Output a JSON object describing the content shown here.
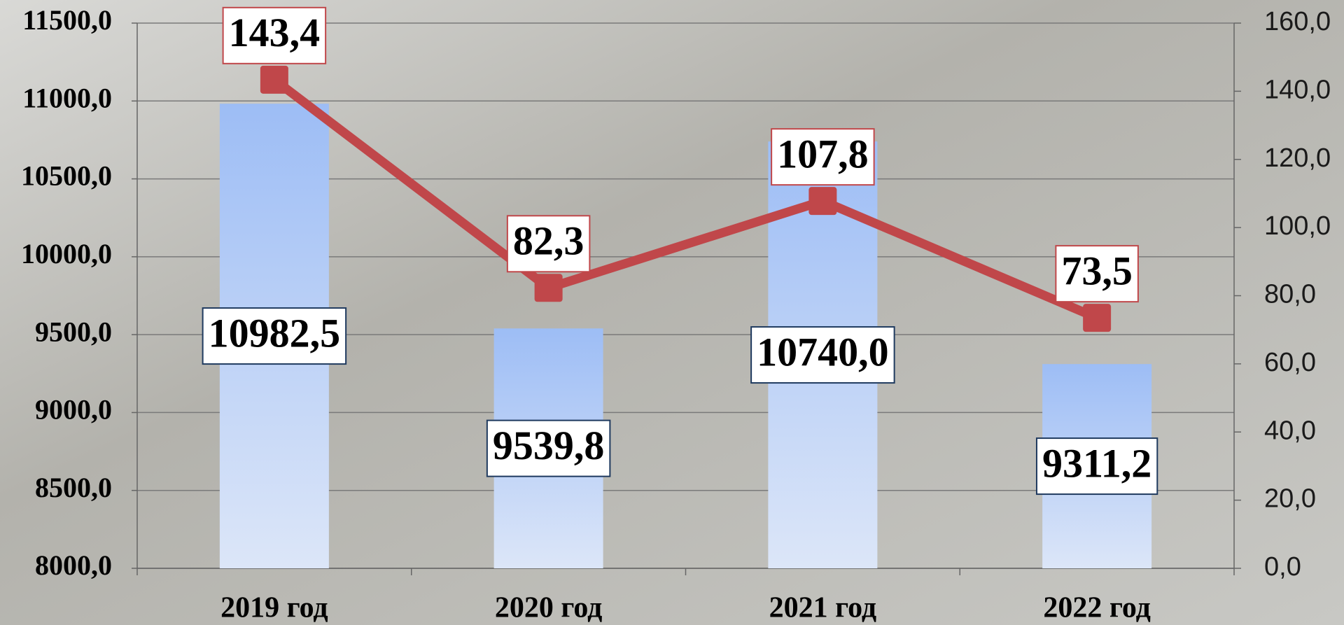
{
  "chart_data": {
    "type": "combo",
    "categories": [
      "2019 год",
      "2020 год",
      "2021 год",
      "2022 год"
    ],
    "series": [
      {
        "type": "bar",
        "color": "#a4c2f4",
        "values": [
          10982.5,
          9539.8,
          10740.0,
          9311.2
        ],
        "value_labels": [
          "10982,5",
          "9539,8",
          "10740,0",
          "9311,2"
        ]
      },
      {
        "type": "line",
        "color": "#c0474a",
        "axis": "y2",
        "values": [
          143.4,
          82.3,
          107.8,
          73.5
        ],
        "value_labels": [
          "143,4",
          "82,3",
          "107,8",
          "73,5"
        ]
      }
    ],
    "ylim": [
      8000,
      11500
    ],
    "yticks": [
      {
        "value": 8000,
        "label": "8000,0"
      },
      {
        "value": 8500,
        "label": "8500,0"
      },
      {
        "value": 9000,
        "label": "9000,0"
      },
      {
        "value": 9500,
        "label": "9500,0"
      },
      {
        "value": 10000,
        "label": "10000,0"
      },
      {
        "value": 10500,
        "label": "10500,0"
      },
      {
        "value": 11000,
        "label": "11000,0"
      },
      {
        "value": 11500,
        "label": "11500,0"
      }
    ],
    "y2lim": [
      0,
      160
    ],
    "y2ticks": [
      {
        "value": 0,
        "label": "0,0"
      },
      {
        "value": 20,
        "label": "20,0"
      },
      {
        "value": 40,
        "label": "40,0"
      },
      {
        "value": 60,
        "label": "60,0"
      },
      {
        "value": 80,
        "label": "80,0"
      },
      {
        "value": 100,
        "label": "100,0"
      },
      {
        "value": 120,
        "label": "120,0"
      },
      {
        "value": 140,
        "label": "140,0"
      },
      {
        "value": 160,
        "label": "160,0"
      }
    ],
    "grid": true
  }
}
